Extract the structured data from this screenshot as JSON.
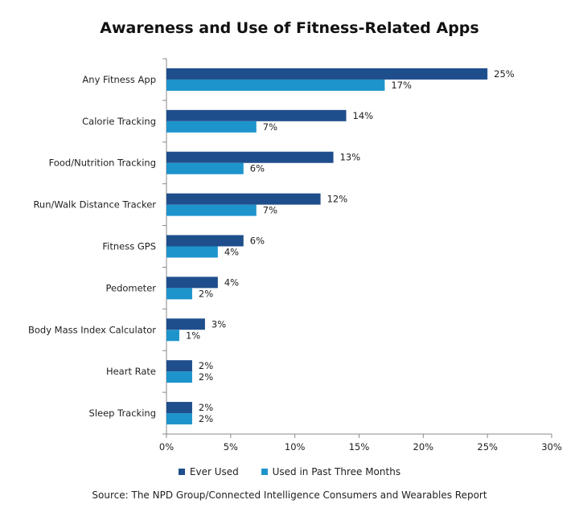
{
  "chart_data": {
    "type": "bar",
    "orientation": "horizontal",
    "title": "Awareness and Use of Fitness-Related Apps",
    "categories": [
      "Any Fitness App",
      "Calorie Tracking",
      "Food/Nutrition Tracking",
      "Run/Walk Distance Tracker",
      "Fitness GPS",
      "Pedometer",
      "Body Mass Index Calculator",
      "Heart Rate",
      "Sleep Tracking"
    ],
    "series": [
      {
        "name": "Ever Used",
        "color": "#1f4e8c",
        "values": [
          25,
          14,
          13,
          12,
          6,
          4,
          3,
          2,
          2
        ]
      },
      {
        "name": "Used in Past Three Months",
        "color": "#1e94cc",
        "values": [
          17,
          7,
          6,
          7,
          4,
          2,
          1,
          2,
          2
        ]
      }
    ],
    "value_suffix": "%",
    "xlim": [
      0,
      30
    ],
    "xticks": [
      0,
      5,
      10,
      15,
      20,
      25,
      30
    ],
    "xtick_labels": [
      "0%",
      "5%",
      "10%",
      "15%",
      "20%",
      "25%",
      "30%"
    ],
    "grid": false,
    "legend_position": "bottom",
    "source": "Source: The NPD Group/Connected  Intelligence Consumers and Wearables Report"
  }
}
